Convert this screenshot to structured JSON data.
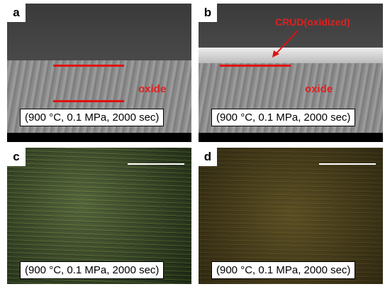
{
  "panels": [
    {
      "label": "a",
      "annotations": [
        "oxide"
      ],
      "caption": "(900 °C, 0.1 MPa, 2000 sec)"
    },
    {
      "label": "b",
      "annotations": [
        "CRUD(oxidized)",
        "oxide"
      ],
      "caption": "(900 °C, 0.1 MPa, 2000 sec)"
    },
    {
      "label": "c",
      "annotations": [],
      "caption": "(900 °C, 0.1 MPa, 2000 sec)"
    },
    {
      "label": "d",
      "annotations": [],
      "caption": "(900 °C, 0.1 MPa, 2000 sec)"
    }
  ]
}
